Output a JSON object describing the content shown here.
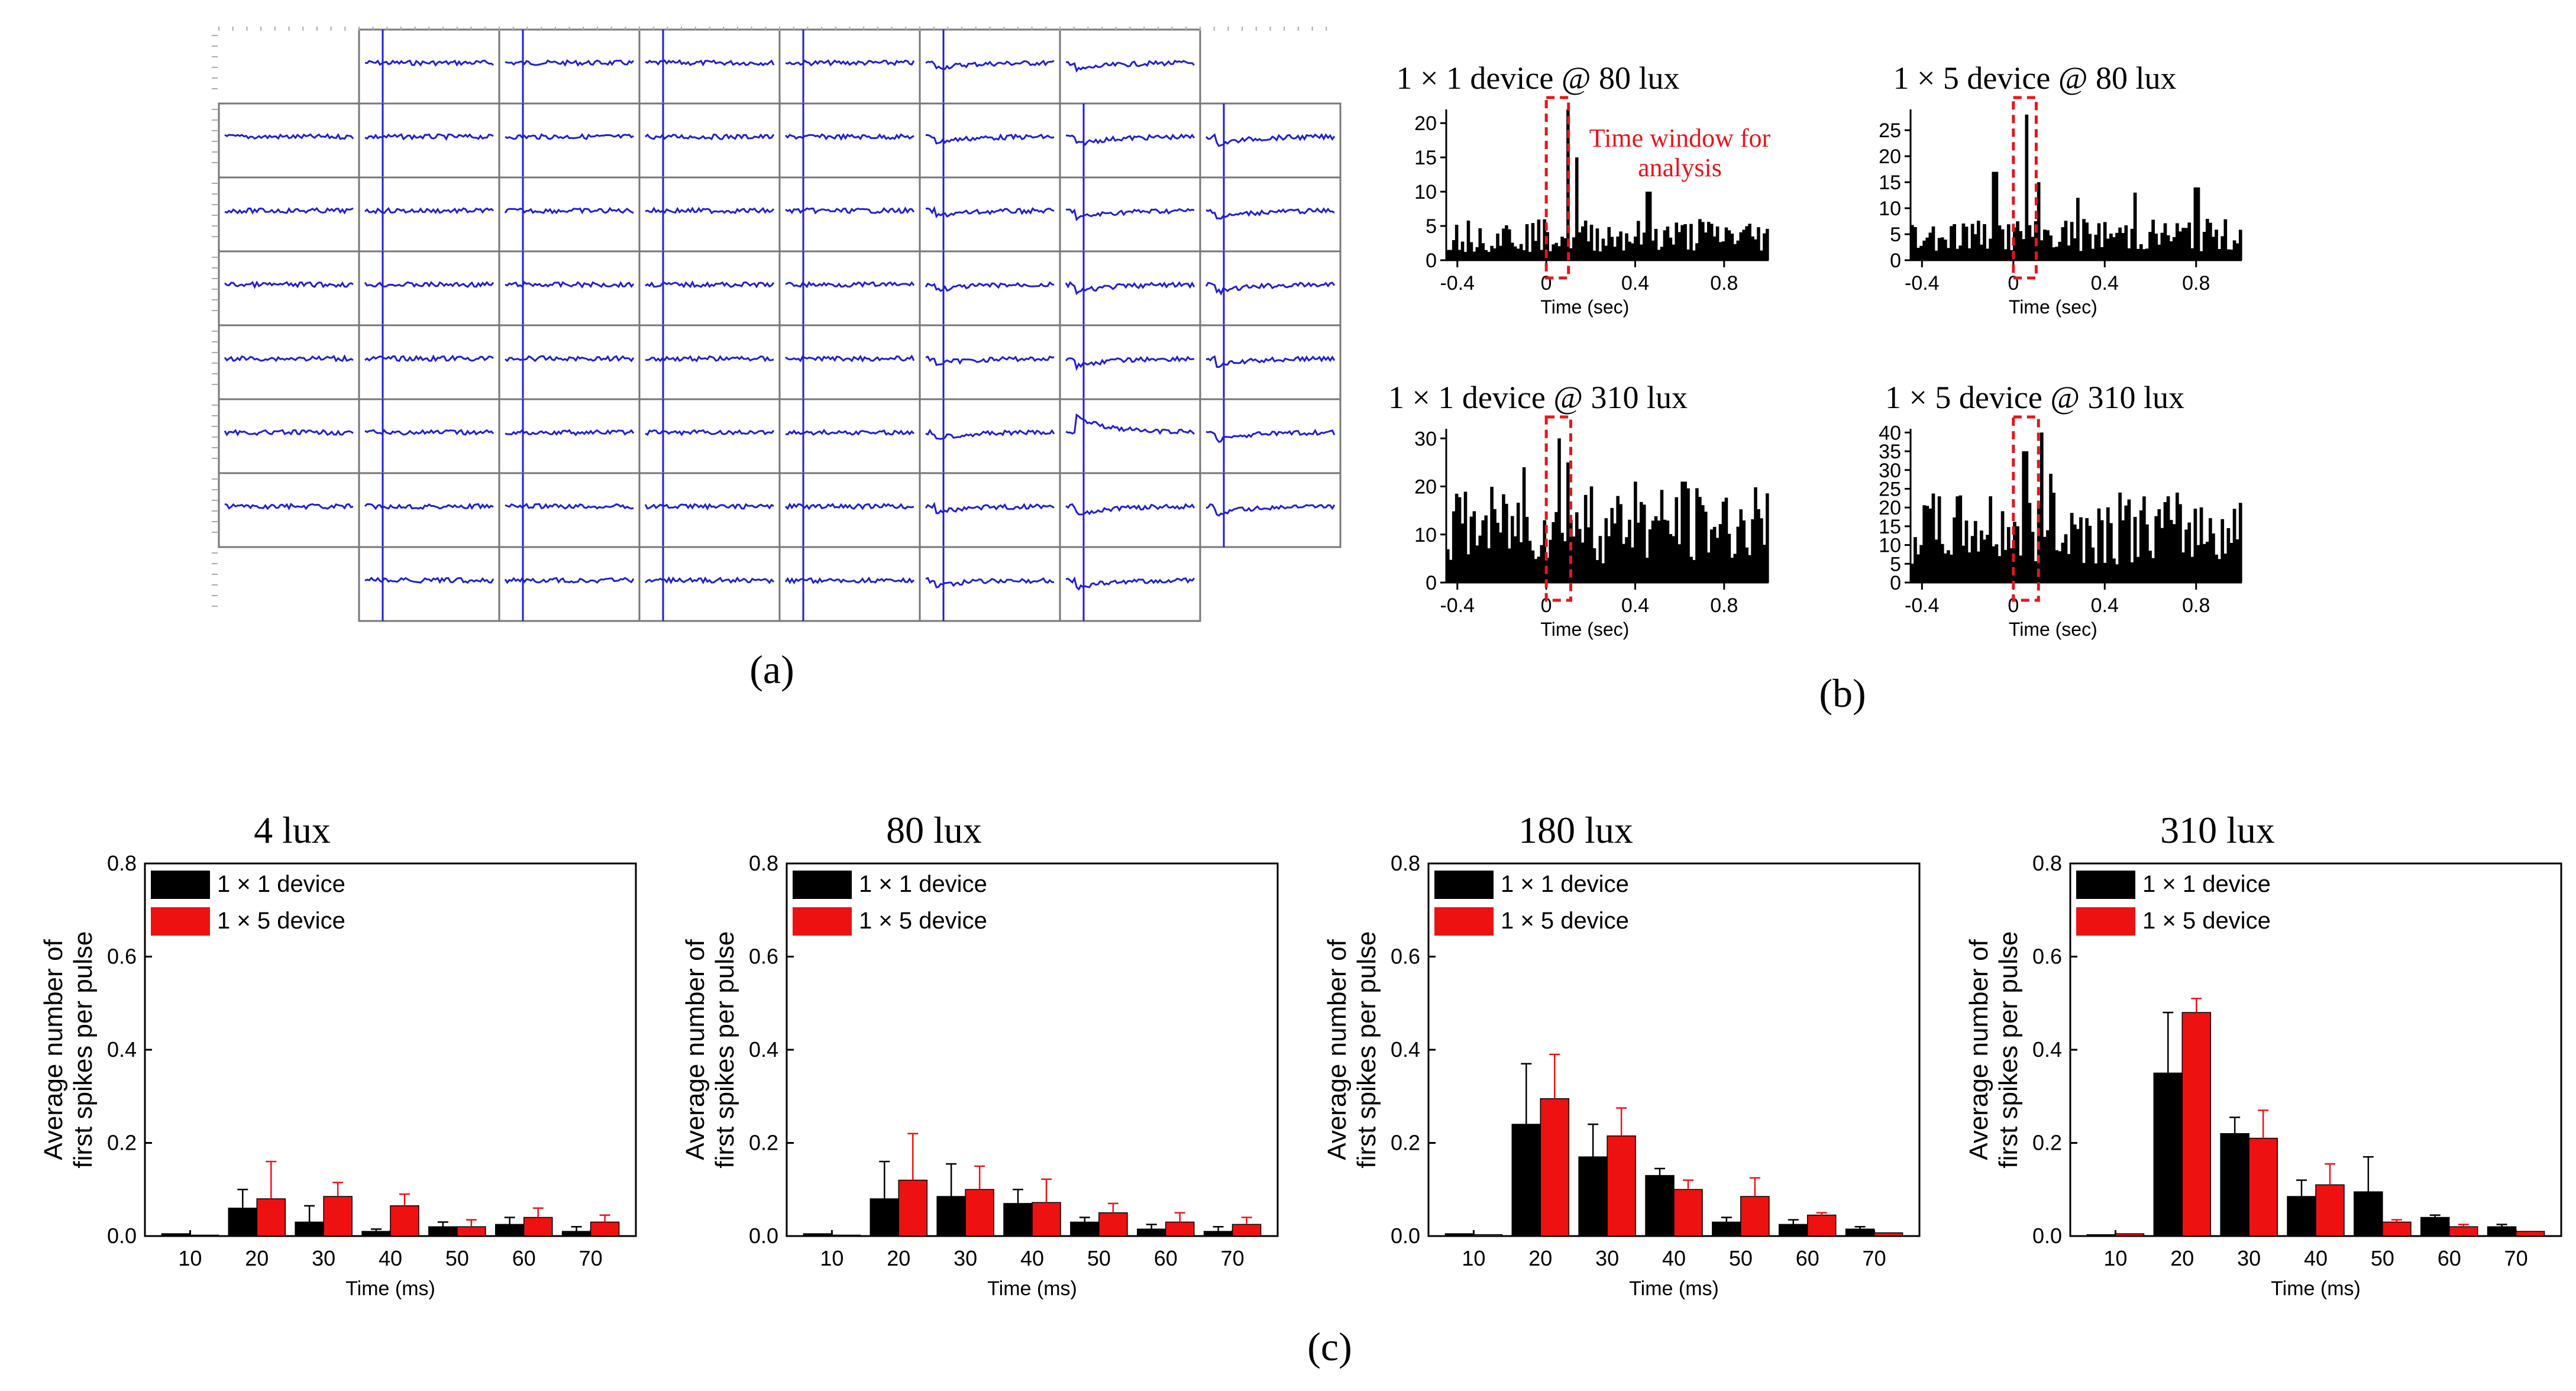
{
  "figure": {
    "label_a": "(a)",
    "label_b": "(b)",
    "label_c": "(c)"
  },
  "panel_a": {
    "description_name": "MEA recordings grid",
    "trace_color": "#1f1fd6"
  },
  "panel_b": {
    "annotation": [
      "Time window for",
      "analysis"
    ],
    "annotation_color": "#e8141a",
    "bar_color": "#000000"
  },
  "chart_data": [
    {
      "type": "bar",
      "title": "1 × 1 device @ 80 lux",
      "xlabel": "Time (sec)",
      "xlim": [
        -0.45,
        1.0
      ],
      "xticks": [
        -0.4,
        0,
        0.4,
        0.8
      ],
      "ylim": [
        0,
        22
      ],
      "yticks": [
        0,
        5,
        10,
        15,
        20
      ],
      "window": [
        0,
        0.1
      ],
      "peaks": [
        {
          "x": 0.1,
          "y": 22
        },
        {
          "x": 0.14,
          "y": 15
        },
        {
          "x": 0.46,
          "y": 10
        },
        {
          "x": 0.69,
          "y": 6
        }
      ],
      "baseline": 3
    },
    {
      "type": "bar",
      "title": "1 × 5 device @ 80 lux",
      "xlabel": "Time (sec)",
      "xlim": [
        -0.45,
        1.0
      ],
      "xticks": [
        -0.4,
        0,
        0.4,
        0.8
      ],
      "ylim": [
        0,
        29
      ],
      "yticks": [
        0,
        5,
        10,
        15,
        20,
        25
      ],
      "window": [
        0,
        0.1
      ],
      "peaks": [
        {
          "x": 0.06,
          "y": 28
        },
        {
          "x": 0.11,
          "y": 15
        },
        {
          "x": -0.08,
          "y": 17
        },
        {
          "x": 0.28,
          "y": 12
        },
        {
          "x": 0.53,
          "y": 13
        },
        {
          "x": 0.8,
          "y": 14
        }
      ],
      "baseline": 4
    },
    {
      "type": "bar",
      "title": "1 × 1 device @ 310 lux",
      "xlabel": "Time (sec)",
      "xlim": [
        -0.45,
        1.0
      ],
      "xticks": [
        -0.4,
        0,
        0.4,
        0.8
      ],
      "ylim": [
        0,
        32
      ],
      "yticks": [
        0,
        10,
        20,
        30
      ],
      "window": [
        0,
        0.11
      ],
      "peaks": [
        {
          "x": 0.06,
          "y": 30
        },
        {
          "x": 0.1,
          "y": 25
        },
        {
          "x": -0.1,
          "y": 24
        },
        {
          "x": 0.2,
          "y": 20
        },
        {
          "x": 0.4,
          "y": 21
        },
        {
          "x": 0.62,
          "y": 21
        }
      ],
      "baseline": 10
    },
    {
      "type": "bar",
      "title": "1 × 5 device @ 310 lux",
      "xlabel": "Time (sec)",
      "xlim": [
        -0.45,
        1.0
      ],
      "xticks": [
        -0.4,
        0,
        0.4,
        0.8
      ],
      "ylim": [
        0,
        41
      ],
      "yticks": [
        0,
        5,
        10,
        15,
        20,
        25,
        30,
        35,
        40
      ],
      "window": [
        0,
        0.11
      ],
      "peaks": [
        {
          "x": 0.05,
          "y": 35
        },
        {
          "x": 0.12,
          "y": 40
        },
        {
          "x": -0.1,
          "y": 23
        },
        {
          "x": 0.16,
          "y": 29
        },
        {
          "x": 0.47,
          "y": 24
        },
        {
          "x": 0.68,
          "y": 23
        }
      ],
      "baseline": 12
    },
    {
      "type": "bar",
      "title": "4 lux",
      "xlabel": "Time (ms)",
      "ylabel": [
        "Average number of",
        "first spikes per pulse"
      ],
      "ylim": [
        0,
        0.8
      ],
      "yticks": [
        "0.0",
        "0.2",
        "0.4",
        "0.6",
        "0.8"
      ],
      "categories": [
        "10",
        "20",
        "30",
        "40",
        "50",
        "60",
        "70"
      ],
      "legend": [
        "1 × 1 device",
        "1 × 5 device"
      ],
      "series": [
        {
          "name": "1 × 1 device",
          "color": "#000000",
          "values": [
            0.005,
            0.06,
            0.03,
            0.01,
            0.02,
            0.025,
            0.01
          ],
          "errors": [
            0.0,
            0.04,
            0.035,
            0.005,
            0.01,
            0.015,
            0.01
          ]
        },
        {
          "name": "1 × 5 device",
          "color": "#ee1111",
          "values": [
            0.002,
            0.08,
            0.085,
            0.065,
            0.02,
            0.04,
            0.03
          ],
          "errors": [
            0.0,
            0.08,
            0.03,
            0.025,
            0.015,
            0.02,
            0.015
          ]
        }
      ]
    },
    {
      "type": "bar",
      "title": "80 lux",
      "xlabel": "Time (ms)",
      "ylabel": [
        "Average number of",
        "first spikes per pulse"
      ],
      "ylim": [
        0,
        0.8
      ],
      "yticks": [
        "0.0",
        "0.2",
        "0.4",
        "0.6",
        "0.8"
      ],
      "categories": [
        "10",
        "20",
        "30",
        "40",
        "50",
        "60",
        "70"
      ],
      "legend": [
        "1 × 1 device",
        "1 × 5 device"
      ],
      "series": [
        {
          "name": "1 × 1 device",
          "color": "#000000",
          "values": [
            0.005,
            0.08,
            0.085,
            0.07,
            0.03,
            0.015,
            0.01
          ],
          "errors": [
            0.0,
            0.08,
            0.07,
            0.03,
            0.01,
            0.01,
            0.01
          ]
        },
        {
          "name": "1 × 5 device",
          "color": "#ee1111",
          "values": [
            0.002,
            0.12,
            0.1,
            0.072,
            0.05,
            0.03,
            0.025
          ],
          "errors": [
            0.0,
            0.1,
            0.05,
            0.05,
            0.02,
            0.02,
            0.015
          ]
        }
      ]
    },
    {
      "type": "bar",
      "title": "180 lux",
      "xlabel": "Time (ms)",
      "ylabel": [
        "Average number of",
        "first spikes per pulse"
      ],
      "ylim": [
        0,
        0.8
      ],
      "yticks": [
        "0.0",
        "0.2",
        "0.4",
        "0.6",
        "0.8"
      ],
      "categories": [
        "10",
        "20",
        "30",
        "40",
        "50",
        "60",
        "70"
      ],
      "legend": [
        "1 × 1 device",
        "1 × 5 device"
      ],
      "series": [
        {
          "name": "1 × 1 device",
          "color": "#000000",
          "values": [
            0.005,
            0.24,
            0.17,
            0.13,
            0.03,
            0.025,
            0.015
          ],
          "errors": [
            0.0,
            0.13,
            0.07,
            0.015,
            0.01,
            0.01,
            0.005
          ]
        },
        {
          "name": "1 × 5 device",
          "color": "#ee1111",
          "values": [
            0.003,
            0.295,
            0.215,
            0.1,
            0.085,
            0.045,
            0.007
          ],
          "errors": [
            0.0,
            0.095,
            0.06,
            0.02,
            0.04,
            0.005,
            0.0
          ]
        }
      ]
    },
    {
      "type": "bar",
      "title": "310 lux",
      "xlabel": "Time (ms)",
      "ylabel": [
        "Average number of",
        "first spikes per pulse"
      ],
      "ylim": [
        0,
        0.8
      ],
      "yticks": [
        "0.0",
        "0.2",
        "0.4",
        "0.6",
        "0.8"
      ],
      "categories": [
        "10",
        "20",
        "30",
        "40",
        "50",
        "60",
        "70"
      ],
      "legend": [
        "1 × 1 device",
        "1 × 5 device"
      ],
      "series": [
        {
          "name": "1 × 1 device",
          "color": "#000000",
          "values": [
            0.003,
            0.35,
            0.22,
            0.085,
            0.095,
            0.04,
            0.02
          ],
          "errors": [
            0.0,
            0.13,
            0.035,
            0.035,
            0.075,
            0.005,
            0.005
          ]
        },
        {
          "name": "1 × 5 device",
          "color": "#ee1111",
          "values": [
            0.005,
            0.48,
            0.21,
            0.11,
            0.03,
            0.02,
            0.01
          ],
          "errors": [
            0.0,
            0.03,
            0.06,
            0.045,
            0.005,
            0.005,
            0.0
          ]
        }
      ]
    }
  ]
}
